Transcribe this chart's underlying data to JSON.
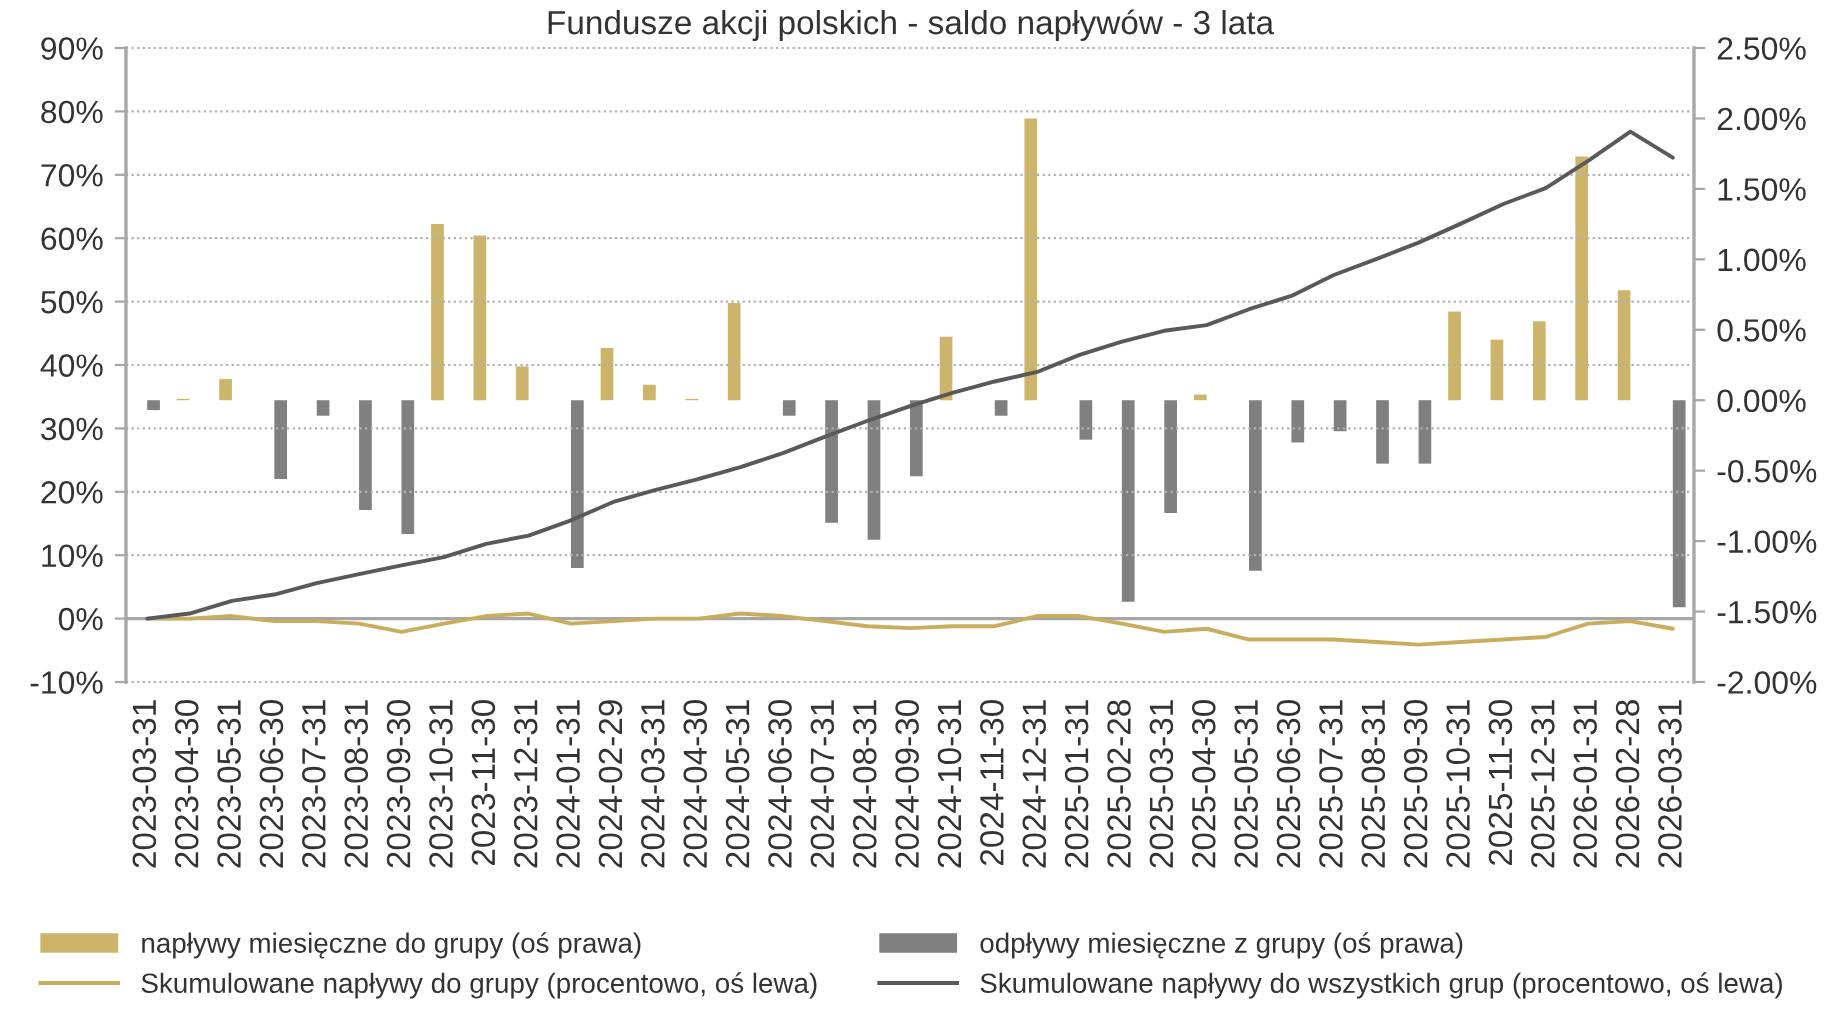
{
  "chart_data": {
    "type": "bar",
    "title": "Fundusze akcji polskich - saldo napływów - 3 lata",
    "categories": [
      "2023-03-31",
      "2023-04-30",
      "2023-05-31",
      "2023-06-30",
      "2023-07-31",
      "2023-08-31",
      "2023-09-30",
      "2023-10-31",
      "2023-11-30",
      "2023-12-31",
      "2024-01-31",
      "2024-02-29",
      "2024-03-31",
      "2024-04-30",
      "2024-05-31",
      "2024-06-30",
      "2024-07-31",
      "2024-08-31",
      "2024-09-30",
      "2024-10-31",
      "2024-11-30",
      "2024-12-31",
      "2025-01-31",
      "2025-02-28",
      "2025-03-31",
      "2025-04-30",
      "2025-05-31",
      "2025-06-30",
      "2025-07-31",
      "2025-08-31",
      "2025-09-30",
      "2025-10-31",
      "2025-11-30",
      "2025-12-31",
      "2026-01-31",
      "2026-02-28",
      "2026-03-31"
    ],
    "series": [
      {
        "name": "napływy miesięczne do grupy (oś prawa)",
        "axis": "y2",
        "color": "#cdb46b",
        "values": [
          null,
          0.01,
          0.15,
          null,
          null,
          null,
          null,
          1.25,
          1.17,
          0.24,
          null,
          0.37,
          0.11,
          0.01,
          0.69,
          null,
          null,
          null,
          null,
          0.45,
          null,
          2.0,
          null,
          null,
          null,
          0.04,
          null,
          null,
          null,
          null,
          null,
          0.63,
          0.43,
          0.56,
          1.73,
          0.78,
          null
        ]
      },
      {
        "name": "odpływy miesięczne z grupy (oś prawa)",
        "axis": "y2",
        "color": "#808080",
        "values": [
          -0.07,
          null,
          null,
          -0.56,
          -0.11,
          -0.78,
          -0.95,
          null,
          null,
          null,
          -1.19,
          null,
          null,
          null,
          null,
          -0.11,
          -0.87,
          -0.99,
          -0.54,
          null,
          -0.11,
          null,
          -0.28,
          -1.43,
          -0.8,
          null,
          -1.21,
          -0.3,
          -0.22,
          -0.45,
          -0.45,
          null,
          null,
          null,
          null,
          null,
          -1.47
        ]
      },
      {
        "name": "Skumulowane napływy do grupy (procentowo, oś lewa)",
        "type": "line",
        "axis": "y",
        "color": "#c9ad5f",
        "values": [
          0,
          0,
          0.4,
          -0.4,
          -0.4,
          -0.8,
          -2.1,
          -0.8,
          0.4,
          0.8,
          -0.8,
          -0.4,
          0,
          0,
          0.8,
          0.4,
          -0.4,
          -1.2,
          -1.5,
          -1.2,
          -1.2,
          0.4,
          0.4,
          -0.8,
          -2.1,
          -1.6,
          -3.3,
          -3.3,
          -3.3,
          -3.7,
          -4.1,
          -3.7,
          -3.3,
          -2.9,
          -0.8,
          -0.4,
          -1.6
        ]
      },
      {
        "name": "Skumulowane napływy do wszystkich grup (procentowo, oś lewa)",
        "type": "line",
        "axis": "y",
        "color": "#595959",
        "values": [
          0,
          0.8,
          2.8,
          3.8,
          5.6,
          7.0,
          8.4,
          9.7,
          11.8,
          13.1,
          15.5,
          18.4,
          20.3,
          22.0,
          23.9,
          26.1,
          28.7,
          31.2,
          33.5,
          35.6,
          37.4,
          38.9,
          41.6,
          43.7,
          45.4,
          46.3,
          48.8,
          50.9,
          54.2,
          56.7,
          59.3,
          62.3,
          65.4,
          67.9,
          72.2,
          76.8,
          72.7
        ]
      }
    ],
    "ylim": [
      -10,
      90
    ],
    "yticks": [
      {
        "value": -10,
        "label": "-10%"
      },
      {
        "value": 0,
        "label": "0%"
      },
      {
        "value": 10,
        "label": "10%"
      },
      {
        "value": 20,
        "label": "20%"
      },
      {
        "value": 30,
        "label": "30%"
      },
      {
        "value": 40,
        "label": "40%"
      },
      {
        "value": 50,
        "label": "50%"
      },
      {
        "value": 60,
        "label": "60%"
      },
      {
        "value": 70,
        "label": "70%"
      },
      {
        "value": 80,
        "label": "80%"
      },
      {
        "value": 90,
        "label": "90%"
      }
    ],
    "y2lim": [
      -2.0,
      2.5
    ],
    "y2ticks": [
      {
        "value": -2.0,
        "label": "-2.00%"
      },
      {
        "value": -1.5,
        "label": "-1.50%"
      },
      {
        "value": -1.0,
        "label": "-1.00%"
      },
      {
        "value": -0.5,
        "label": "-0.50%"
      },
      {
        "value": 0,
        "label": "0.00%"
      },
      {
        "value": 0.5,
        "label": "0.50%"
      },
      {
        "value": 1.0,
        "label": "1.00%"
      },
      {
        "value": 1.5,
        "label": "1.50%"
      },
      {
        "value": 2.0,
        "label": "2.00%"
      },
      {
        "value": 2.5,
        "label": "2.50%"
      }
    ],
    "ref_lines": [
      {
        "axis": "y",
        "value": 0,
        "color": "#a6a6a6"
      }
    ],
    "grid": "y",
    "legend": "bottom"
  }
}
